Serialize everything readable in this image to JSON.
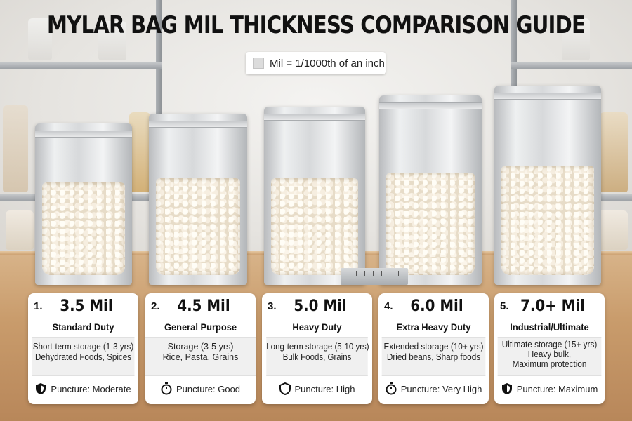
{
  "title": "MYLAR BAG MIL THICKNESS COMPARISON GUIDE",
  "subtitle": "Mil = 1/1000th of an inch",
  "cards": [
    {
      "number": "1.",
      "mil": "3.5 Mil",
      "duty": "Standard Duty",
      "desc1": "Short-term storage (1-3 yrs)",
      "desc2": "Dehydrated Foods, Spices",
      "desc3": "",
      "icon": "shield-icon",
      "puncture": "Puncture: Moderate"
    },
    {
      "number": "2.",
      "mil": "4.5 Mil",
      "duty": "General Purpose",
      "desc1": "Storage (3-5 yrs)",
      "desc2": "Rice, Pasta, Grains",
      "desc3": "",
      "icon": "stopwatch-icon",
      "puncture": "Puncture: Good"
    },
    {
      "number": "3.",
      "mil": "5.0 Mil",
      "duty": "Heavy Duty",
      "desc1": "Long-term storage (5-10 yrs)",
      "desc2": "Bulk Foods, Grains",
      "desc3": "",
      "icon": "shield-icon",
      "puncture": "Puncture: High"
    },
    {
      "number": "4.",
      "mil": "6.0 Mil",
      "duty": "Extra Heavy Duty",
      "desc1": "Extended storage (10+ yrs)",
      "desc2": "Dried beans, Sharp foods",
      "desc3": "",
      "icon": "stopwatch-icon",
      "puncture": "Puncture: Very High"
    },
    {
      "number": "5.",
      "mil": "7.0+ Mil",
      "duty": "Industrial/Ultimate",
      "desc1": "Ultimate storage (15+ yrs)",
      "desc2": "Heavy bulk,",
      "desc3": "Maximum protection",
      "icon": "shield-icon",
      "puncture": "Puncture: Maximum"
    }
  ],
  "colors": {
    "title": "#111111",
    "counter": "#c99c6c",
    "card": "#ffffff",
    "card_band": "#f0f0f0"
  }
}
